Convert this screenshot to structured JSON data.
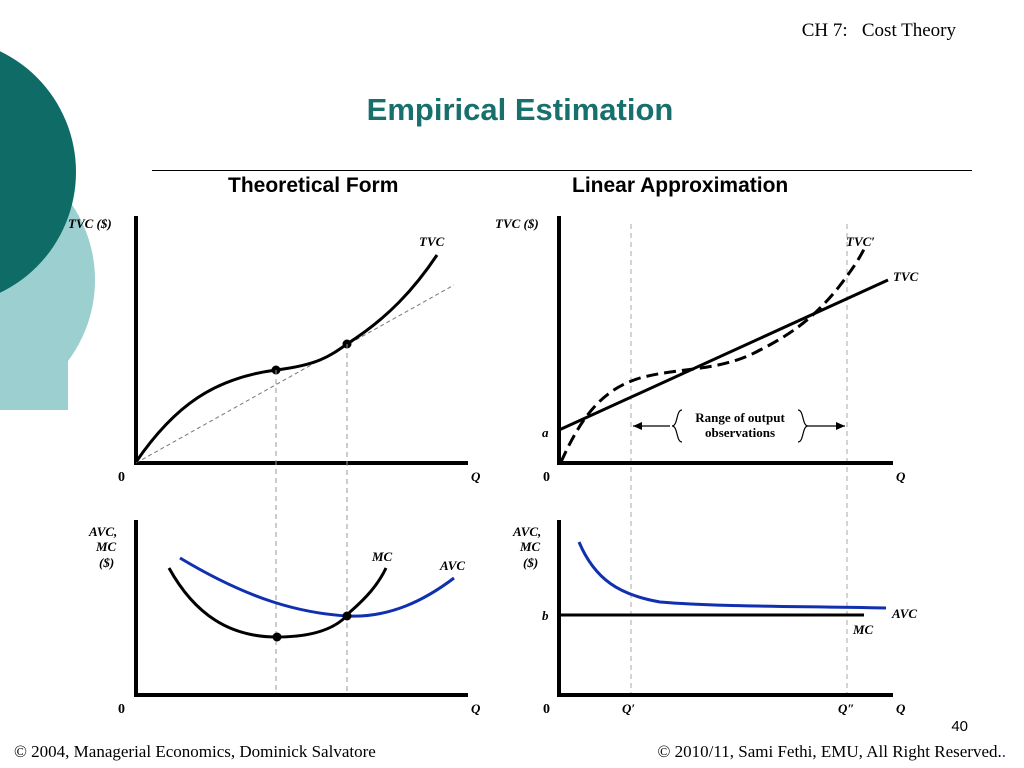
{
  "header": {
    "chapter": "CH 7:   Cost Theory"
  },
  "title": "Empirical Estimation",
  "panels": {
    "left_heading": "Theoretical Form",
    "right_heading": "Linear Approximation",
    "top_left": {
      "y_axis": "TVC ($)",
      "x_axis": "Q",
      "origin": "0",
      "curve": "TVC"
    },
    "bottom_left": {
      "y_axis_lines": [
        "AVC,",
        "MC",
        "($)"
      ],
      "x_axis": "Q",
      "origin": "0",
      "curves": [
        "MC",
        "AVC"
      ]
    },
    "top_right": {
      "y_axis": "TVC ($)",
      "x_axis": "Q",
      "origin": "0",
      "intercept": "a",
      "curves": [
        "TVC′",
        "TVC"
      ],
      "range_lines": [
        "Range of output",
        "observations"
      ]
    },
    "bottom_right": {
      "y_axis_lines": [
        "AVC,",
        "MC",
        "($)"
      ],
      "x_axis": "Q",
      "origin": "0",
      "level": "b",
      "curves": [
        "AVC",
        "MC"
      ],
      "ticks": [
        "Q′",
        "Q″"
      ]
    }
  },
  "colors": {
    "title": "#17706b",
    "deco_dark": "#0e6b66",
    "deco_light": "#9ccfcf",
    "avc_blue": "#1030b0"
  },
  "footer": {
    "left": "© 2004,  Managerial Economics, Dominick Salvatore",
    "right": "© 2010/11, Sami Fethi, EMU, All Right Reserved.",
    "right_dot": ".",
    "page_number": "40"
  }
}
